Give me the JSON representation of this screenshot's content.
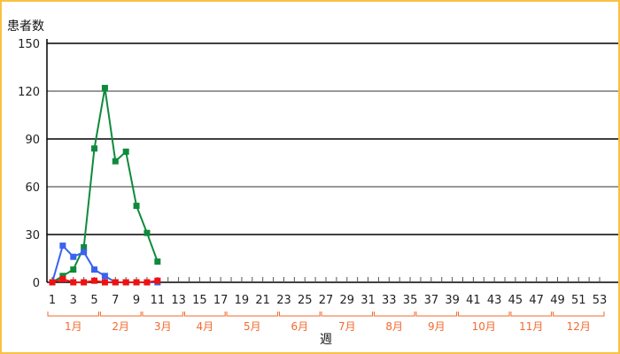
{
  "chart_data": {
    "type": "line",
    "ylabel": "患者数",
    "xlabel": "週",
    "ylim": [
      0,
      150
    ],
    "yticks": [
      0,
      30,
      60,
      90,
      120,
      150
    ],
    "xlim": [
      1,
      53
    ],
    "xticks": [
      1,
      3,
      5,
      7,
      9,
      11,
      13,
      15,
      17,
      19,
      21,
      23,
      25,
      27,
      29,
      31,
      33,
      35,
      37,
      39,
      41,
      43,
      45,
      47,
      49,
      51,
      53
    ],
    "grid": true,
    "months": [
      {
        "label": "1月",
        "start": 1,
        "end": 5
      },
      {
        "label": "2月",
        "start": 6,
        "end": 9
      },
      {
        "label": "3月",
        "start": 10,
        "end": 13
      },
      {
        "label": "4月",
        "start": 14,
        "end": 17
      },
      {
        "label": "5月",
        "start": 18,
        "end": 22
      },
      {
        "label": "6月",
        "start": 23,
        "end": 26
      },
      {
        "label": "7月",
        "start": 27,
        "end": 31
      },
      {
        "label": "8月",
        "start": 32,
        "end": 35
      },
      {
        "label": "9月",
        "start": 36,
        "end": 39
      },
      {
        "label": "10月",
        "start": 40,
        "end": 44
      },
      {
        "label": "11月",
        "start": 45,
        "end": 48
      },
      {
        "label": "12月",
        "start": 49,
        "end": 53
      }
    ],
    "series": [
      {
        "color": "#0f8a3c",
        "x": [
          1,
          2,
          3,
          4,
          5,
          6,
          7,
          8,
          9,
          10,
          11
        ],
        "values": [
          0,
          4,
          8,
          22,
          84,
          122,
          76,
          82,
          48,
          31,
          13
        ]
      },
      {
        "color": "#3a62f0",
        "x": [
          1,
          2,
          3,
          4,
          5,
          6,
          7,
          8,
          9,
          10,
          11
        ],
        "values": [
          0,
          23,
          16,
          19,
          8,
          4,
          0,
          0,
          0,
          0,
          0
        ]
      },
      {
        "color": "#ee1111",
        "x": [
          1,
          2,
          3,
          4,
          5,
          6,
          7,
          8,
          9,
          10,
          11
        ],
        "values": [
          0,
          2,
          0,
          0,
          1,
          0,
          0,
          0,
          0,
          0,
          1
        ]
      }
    ]
  }
}
